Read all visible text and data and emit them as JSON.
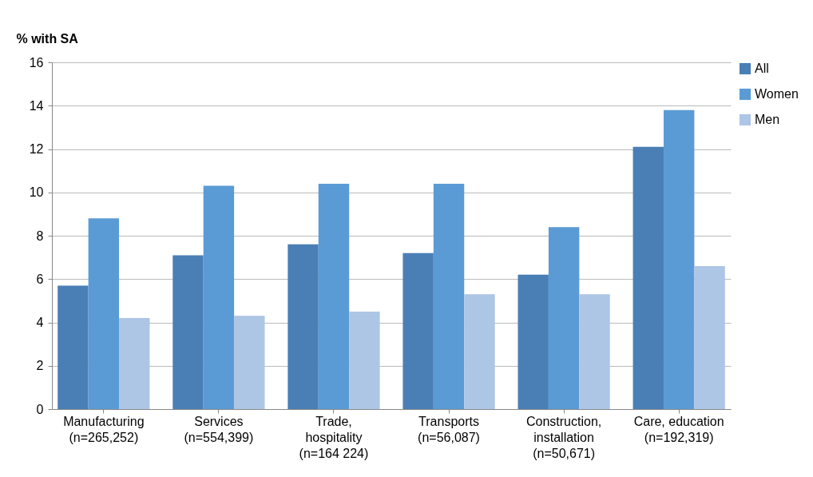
{
  "chart_data": {
    "type": "bar",
    "ylabel": "% with SA",
    "categories": [
      "Manufacturing\n(n=265,252)",
      "Services\n(n=554,399)",
      "Trade,\nhospitality\n(n=164 224)",
      "Transports\n(n=56,087)",
      "Construction,\ninstallation\n(n=50,671)",
      "Care, education\n(n=192,319)"
    ],
    "series": [
      {
        "name": "All",
        "color": "#4a7fb5",
        "values": [
          5.7,
          7.1,
          7.6,
          7.2,
          6.2,
          12.1
        ]
      },
      {
        "name": "Women",
        "color": "#5b9bd5",
        "values": [
          8.8,
          10.3,
          10.4,
          10.4,
          8.4,
          13.8
        ]
      },
      {
        "name": "Men",
        "color": "#adc6e6",
        "values": [
          4.2,
          4.3,
          4.5,
          5.3,
          5.3,
          6.6
        ]
      }
    ],
    "ylim": [
      0,
      16
    ],
    "yticks": [
      0,
      2,
      4,
      6,
      8,
      10,
      12,
      14,
      16
    ],
    "grid": "y",
    "legend": "right"
  }
}
